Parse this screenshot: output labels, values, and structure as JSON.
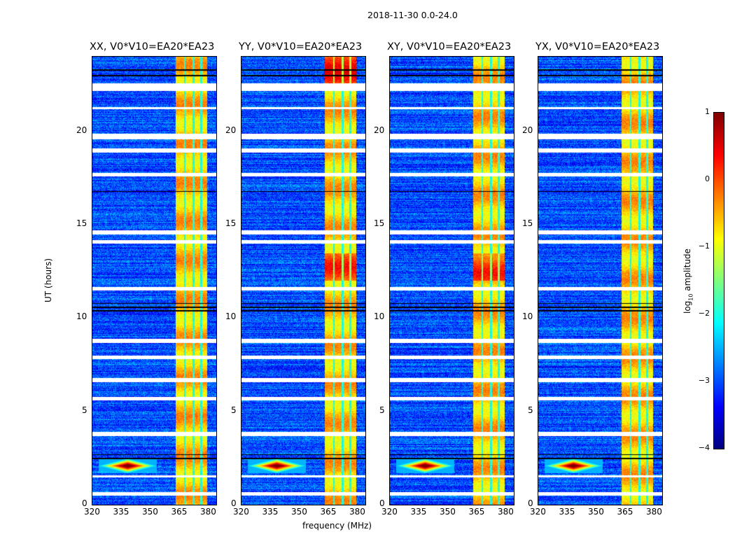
{
  "figure_title": "2018-11-30 0.0-24.0",
  "chart_data": {
    "type": "heatmap",
    "title": "2018-11-30 0.0-24.0",
    "xlabel": "frequency (MHz)",
    "ylabel": "UT (hours)",
    "xlim": [
      320,
      384
    ],
    "ylim": [
      0,
      24
    ],
    "xticks": [
      "320",
      "335",
      "350",
      "365",
      "380"
    ],
    "xtick_values": [
      320,
      335,
      350,
      365,
      380
    ],
    "yticks": [
      "0",
      "5",
      "10",
      "15",
      "20"
    ],
    "ytick_values": [
      0,
      5,
      10,
      15,
      20
    ],
    "panels": [
      {
        "title": "XX, V0*V10=EA20*EA23"
      },
      {
        "title": "YY, V0*V10=EA20*EA23"
      },
      {
        "title": "XY, V0*V10=EA20*EA23"
      },
      {
        "title": "YX, V0*V10=EA20*EA23"
      }
    ],
    "colorbar": {
      "label": "log10 amplitude",
      "label_main": "log",
      "label_sub": "10",
      "label_rest": " amplitude",
      "colormap": "jet",
      "range": [
        -4,
        1
      ],
      "ticks": [
        "1",
        "0",
        "−1",
        "−2",
        "−3",
        "−4"
      ],
      "tick_values": [
        1,
        0,
        -1,
        -2,
        -3,
        -4
      ]
    },
    "background_level": -3.0,
    "rfi_band_mhz": [
      363,
      379
    ],
    "rfi_band_level": -0.6,
    "rfi_band_gaps_mhz": [
      367.5,
      372,
      376
    ],
    "flagged_time_ranges_hours": [
      [
        22.2,
        22.6
      ],
      [
        21.2,
        21.3
      ],
      [
        19.6,
        19.9
      ],
      [
        18.9,
        19.1
      ],
      [
        17.6,
        17.8
      ],
      [
        14.5,
        14.7
      ],
      [
        14.0,
        14.2
      ],
      [
        11.5,
        11.7
      ],
      [
        8.7,
        8.9
      ],
      [
        7.8,
        8.0
      ],
      [
        6.6,
        6.8
      ],
      [
        5.6,
        5.8
      ],
      [
        3.7,
        3.9
      ],
      [
        1.5,
        1.6
      ],
      [
        0.5,
        0.7
      ]
    ],
    "strong_time_lines_hours": [
      23.3,
      23.0,
      16.8,
      10.8,
      10.6,
      10.4,
      2.7,
      2.5
    ],
    "rfi_point": {
      "freq_mhz": 338,
      "time_hours": 2.1,
      "level": 0.8
    }
  }
}
